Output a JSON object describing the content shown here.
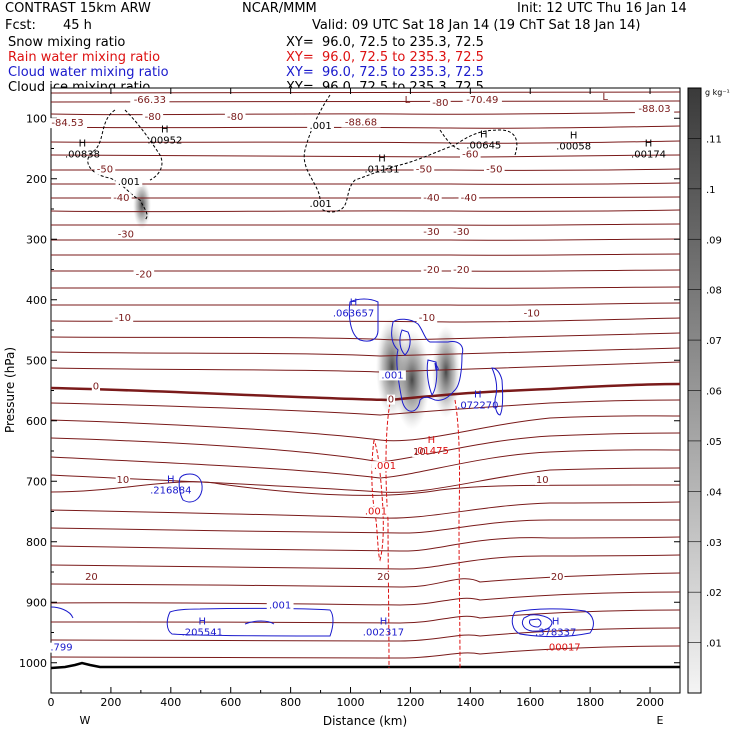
{
  "header": {
    "model": "CONTRAST 15km ARW",
    "org": "NCAR/MMM",
    "init": "Init: 12 UTC Thu 16 Jan 14",
    "fcst_label": "Fcst:",
    "fcst_value": "45 h",
    "valid": "Valid: 09 UTC Sat 18 Jan 14 (19 ChT Sat 18 Jan 14)"
  },
  "legend": [
    {
      "name": "Snow mixing ratio",
      "xy": "XY=  96.0, 72.5 to 235.3, 72.5",
      "color": "#000000"
    },
    {
      "name": "Rain water mixing ratio",
      "xy": "XY=  96.0, 72.5 to 235.3, 72.5",
      "color": "#dd1111"
    },
    {
      "name": "Cloud water mixing ratio",
      "xy": "XY=  96.0, 72.5 to 235.3, 72.5",
      "color": "#1a1acc"
    },
    {
      "name": "Cloud ice mixing ratio",
      "xy": "XY=  96.0, 72.5 to 235.3, 72.5",
      "color": "#000000"
    }
  ],
  "colorbar": {
    "unit": "g kg⁻¹",
    "ticks": [
      ".01",
      ".02",
      ".03",
      ".04",
      ".05",
      ".06",
      ".07",
      ".08",
      ".09",
      ".1",
      ".11"
    ]
  },
  "chart_data": {
    "type": "contour-cross-section",
    "xlabel": "Distance (km)",
    "ylabel": "Pressure (hPa)",
    "xlim": [
      0,
      2100
    ],
    "ylim": [
      1050,
      50
    ],
    "x_ticks": [
      "0",
      "200",
      "400",
      "600",
      "800",
      "1000",
      "1200",
      "1400",
      "1600",
      "1800",
      "2000"
    ],
    "y_ticks": [
      "100",
      "200",
      "300",
      "400",
      "500",
      "600",
      "700",
      "800",
      "900",
      "1000"
    ],
    "direction_left": "W",
    "direction_right": "E",
    "temperature_labels": [
      {
        "text": "-66.33",
        "x": 330,
        "p": 75
      },
      {
        "text": "-80",
        "x": 340,
        "p": 103
      },
      {
        "text": "-80",
        "x": 615,
        "p": 103
      },
      {
        "text": "-80",
        "x": 1300,
        "p": 80
      },
      {
        "text": "-70.49",
        "x": 1440,
        "p": 75
      },
      {
        "text": "-88.03",
        "x": 2015,
        "p": 90
      },
      {
        "text": "-88.68",
        "x": 1035,
        "p": 112
      },
      {
        "text": "-84.53",
        "x": 55,
        "p": 113
      },
      {
        "text": "-60",
        "x": 1400,
        "p": 165
      },
      {
        "text": "-50",
        "x": 180,
        "p": 190
      },
      {
        "text": "-50",
        "x": 1245,
        "p": 190
      },
      {
        "text": "-50",
        "x": 1480,
        "p": 190
      },
      {
        "text": "-40",
        "x": 235,
        "p": 237
      },
      {
        "text": "-40",
        "x": 1270,
        "p": 237
      },
      {
        "text": "-40",
        "x": 1395,
        "p": 237
      },
      {
        "text": "-30",
        "x": 250,
        "p": 297
      },
      {
        "text": "-30",
        "x": 1270,
        "p": 293
      },
      {
        "text": "-30",
        "x": 1370,
        "p": 293
      },
      {
        "text": "-20",
        "x": 310,
        "p": 363
      },
      {
        "text": "-20",
        "x": 1270,
        "p": 356
      },
      {
        "text": "-20",
        "x": 1370,
        "p": 356
      },
      {
        "text": "-10",
        "x": 240,
        "p": 435
      },
      {
        "text": "-10",
        "x": 1255,
        "p": 435
      },
      {
        "text": "-10",
        "x": 1605,
        "p": 428
      },
      {
        "text": "0",
        "x": 150,
        "p": 548
      },
      {
        "text": "0",
        "x": 1135,
        "p": 570
      },
      {
        "text": "10",
        "x": 1230,
        "p": 657
      },
      {
        "text": "10",
        "x": 240,
        "p": 703
      },
      {
        "text": "10",
        "x": 1640,
        "p": 703
      },
      {
        "text": "20",
        "x": 135,
        "p": 863
      },
      {
        "text": "20",
        "x": 1110,
        "p": 863
      },
      {
        "text": "20",
        "x": 1690,
        "p": 863
      }
    ],
    "extrema_labels": [
      {
        "kind": "H",
        "value": ".00838",
        "x": 105,
        "p": 165,
        "color": "#000000"
      },
      {
        "kind": "H",
        "value": ".00952",
        "x": 380,
        "p": 142,
        "color": "#000000"
      },
      {
        "kind": "H",
        "value": ".01131",
        "x": 1105,
        "p": 190,
        "color": "#000000"
      },
      {
        "kind": "H",
        "value": ".00645",
        "x": 1445,
        "p": 150,
        "color": "#000000"
      },
      {
        "kind": "H",
        "value": ".00058",
        "x": 1745,
        "p": 152,
        "color": "#000000"
      },
      {
        "kind": "H",
        "value": ".00174",
        "x": 1995,
        "p": 165,
        "color": "#000000"
      },
      {
        "kind": "L",
        "value": "",
        "x": 1190,
        "p": 75,
        "color": "#7a1a1a"
      },
      {
        "kind": "L",
        "value": "",
        "x": 1850,
        "p": 70,
        "color": "#7a1a1a"
      },
      {
        "kind": "H",
        "value": ".063657",
        "x": 1010,
        "p": 428,
        "color": "#1a1acc"
      },
      {
        "kind": "H",
        "value": ".072270",
        "x": 1425,
        "p": 580,
        "color": "#1a1acc"
      },
      {
        "kind": "H",
        "value": ".216884",
        "x": 400,
        "p": 720,
        "color": "#1a1acc"
      },
      {
        "kind": "H",
        "value": ".205541",
        "x": 505,
        "p": 955,
        "color": "#1a1acc"
      },
      {
        "kind": "H",
        "value": ".002317",
        "x": 1110,
        "p": 955,
        "color": "#1a1acc"
      },
      {
        "kind": "H",
        "value": ".378337",
        "x": 1685,
        "p": 955,
        "color": "#1a1acc"
      },
      {
        "kind": "H",
        "value": ".01475",
        "x": 1270,
        "p": 655,
        "color": "#dd1111"
      },
      {
        "kind": "",
        "value": ".00017",
        "x": 1710,
        "p": 980,
        "color": "#dd1111"
      }
    ],
    "contour_value_labels": [
      {
        "text": ".001",
        "x": 260,
        "p": 210,
        "color": "#000000"
      },
      {
        "text": ".001",
        "x": 900,
        "p": 118,
        "color": "#000000"
      },
      {
        "text": ".001",
        "x": 900,
        "p": 247,
        "color": "#000000"
      },
      {
        "text": ".001",
        "x": 1140,
        "p": 530,
        "color": "#1a1acc"
      },
      {
        "text": ".001",
        "x": 765,
        "p": 910,
        "color": "#1a1acc"
      },
      {
        "text": ".799",
        "x": 35,
        "p": 980,
        "color": "#1a1acc"
      },
      {
        "text": ".001",
        "x": 1115,
        "p": 680,
        "color": "#dd1111"
      },
      {
        "text": ".001",
        "x": 1085,
        "p": 755,
        "color": "#dd1111"
      }
    ]
  }
}
